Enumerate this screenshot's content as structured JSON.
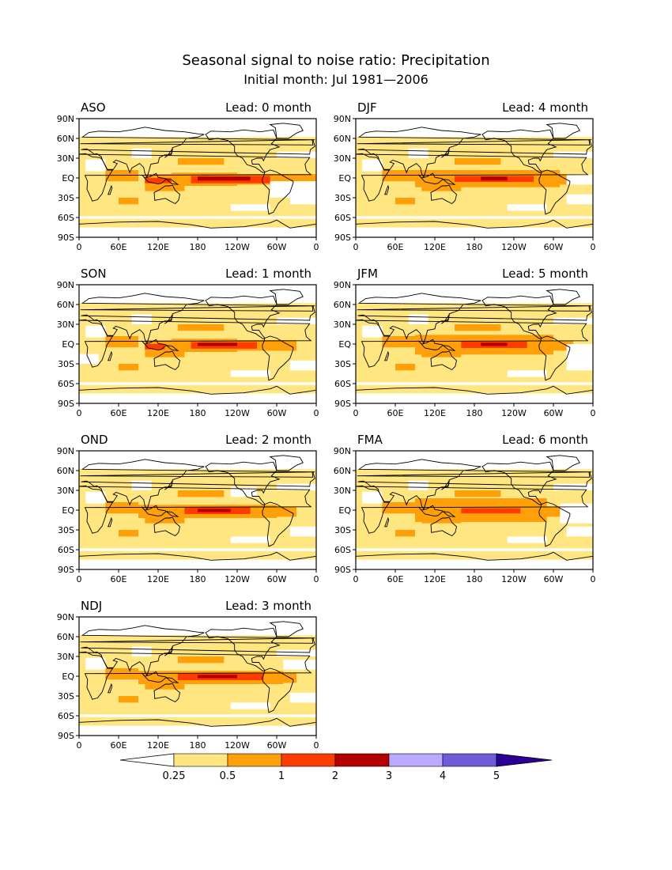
{
  "title": "Seasonal signal to noise ratio: Precipitation",
  "subtitle": "Initial month: Jul 1981—2006",
  "lead_prefix": "Lead:",
  "lead_unit": "month",
  "lat_ticks": [
    "90N",
    "60N",
    "30N",
    "EQ",
    "30S",
    "60S",
    "90S"
  ],
  "lon_ticks": [
    "0",
    "60E",
    "120E",
    "180",
    "120W",
    "60W",
    "0"
  ],
  "panels": [
    {
      "season": "ASO",
      "lead": 0
    },
    {
      "season": "SON",
      "lead": 1
    },
    {
      "season": "OND",
      "lead": 2
    },
    {
      "season": "NDJ",
      "lead": 3
    },
    {
      "season": "DJF",
      "lead": 4
    },
    {
      "season": "JFM",
      "lead": 5
    },
    {
      "season": "FMA",
      "lead": 6
    }
  ],
  "colorbar": {
    "labels": [
      "0.25",
      "0.5",
      "1",
      "2",
      "3",
      "4",
      "5"
    ],
    "colors": [
      "#ffffff",
      "#ffe680",
      "#ffa00a",
      "#ff3c00",
      "#b40000",
      "#bbaaff",
      "#6f5ad8",
      "#2a0096"
    ]
  }
}
